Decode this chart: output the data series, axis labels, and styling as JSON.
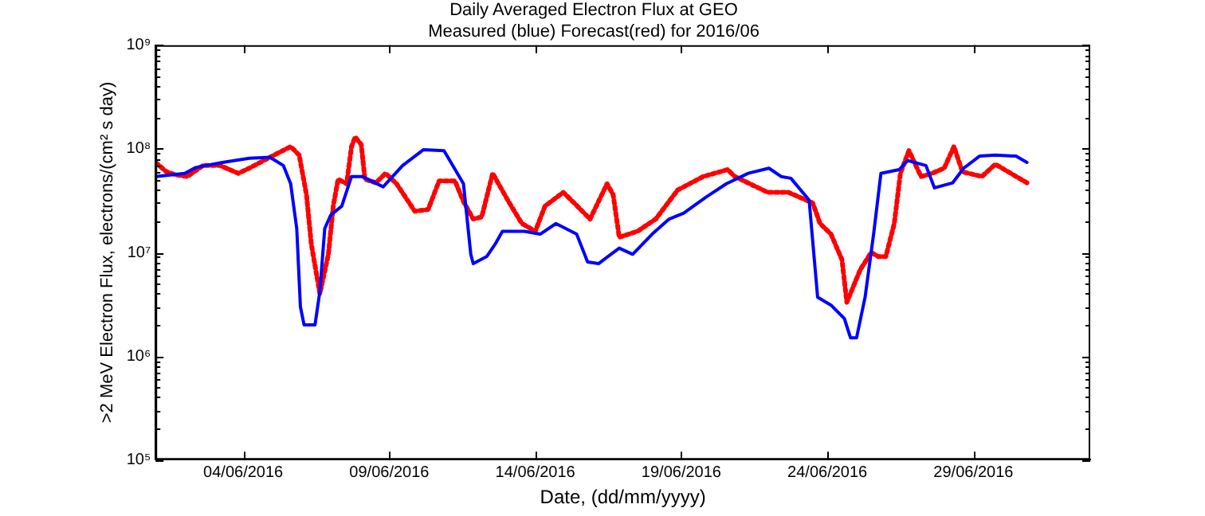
{
  "chart_data": {
    "type": "line",
    "title": "Daily Averaged Electron Flux at GEO",
    "subtitle": "Measured (blue) Forecast(red) for 2016/06",
    "xlabel": "Date, (dd/mm/yyyy)",
    "ylabel": ">2 MeV Electron Flux, electrons/(cm² s day)",
    "log": "y",
    "grid": false,
    "legend": false,
    "xlim": [
      "2016-06-01",
      "2016-07-03"
    ],
    "xticks": [
      {
        "value": "2016-06-04",
        "label": "04/06/2016"
      },
      {
        "value": "2016-06-09",
        "label": "09/06/2016"
      },
      {
        "value": "2016-06-14",
        "label": "14/06/2016"
      },
      {
        "value": "2016-06-19",
        "label": "19/06/2016"
      },
      {
        "value": "2016-06-24",
        "label": "24/06/2016"
      },
      {
        "value": "2016-06-29",
        "label": "29/06/2016"
      }
    ],
    "ylim": [
      100000,
      1000000000
    ],
    "yticks": [
      {
        "value": 100000,
        "label": "10⁵"
      },
      {
        "value": 200000,
        "label": null
      },
      {
        "value": 300000,
        "label": null
      },
      {
        "value": 400000,
        "label": null
      },
      {
        "value": 500000,
        "label": null
      },
      {
        "value": 600000,
        "label": null
      },
      {
        "value": 700000,
        "label": null
      },
      {
        "value": 800000,
        "label": null
      },
      {
        "value": 900000,
        "label": null
      },
      {
        "value": 1000000,
        "label": "10⁶"
      },
      {
        "value": 2000000,
        "label": null
      },
      {
        "value": 3000000,
        "label": null
      },
      {
        "value": 4000000,
        "label": null
      },
      {
        "value": 5000000,
        "label": null
      },
      {
        "value": 6000000,
        "label": null
      },
      {
        "value": 7000000,
        "label": null
      },
      {
        "value": 8000000,
        "label": null
      },
      {
        "value": 9000000,
        "label": null
      },
      {
        "value": 10000000,
        "label": "10⁷"
      },
      {
        "value": 20000000,
        "label": null
      },
      {
        "value": 30000000,
        "label": null
      },
      {
        "value": 40000000,
        "label": null
      },
      {
        "value": 50000000,
        "label": null
      },
      {
        "value": 60000000,
        "label": null
      },
      {
        "value": 70000000,
        "label": null
      },
      {
        "value": 80000000,
        "label": null
      },
      {
        "value": 90000000,
        "label": null
      },
      {
        "value": 100000000,
        "label": "10⁸"
      },
      {
        "value": 200000000,
        "label": null
      },
      {
        "value": 300000000,
        "label": null
      },
      {
        "value": 400000000,
        "label": null
      },
      {
        "value": 500000000,
        "label": null
      },
      {
        "value": 600000000,
        "label": null
      },
      {
        "value": 700000000,
        "label": null
      },
      {
        "value": 800000000,
        "label": null
      },
      {
        "value": 900000000,
        "label": null
      },
      {
        "value": 1000000000,
        "label": "10⁹"
      }
    ],
    "series": [
      {
        "color": "#0000ff",
        "line_style": "solid",
        "x": [
          "2016-06-01T00:00",
          "2016-06-02T00:00",
          "2016-06-02T09:00",
          "2016-06-03T07:00",
          "2016-06-04T05:00",
          "2016-06-04T22:00",
          "2016-06-05T09:00",
          "2016-06-05T15:00",
          "2016-06-05T20:00",
          "2016-06-05T23:00",
          "2016-06-06T02:00",
          "2016-06-06T11:00",
          "2016-06-06T15:00",
          "2016-06-06T19:00",
          "2016-06-07T00:00",
          "2016-06-07T09:00",
          "2016-06-07T17:00",
          "2016-06-08T02:00",
          "2016-06-08T19:00",
          "2016-06-09T11:00",
          "2016-06-10T04:00",
          "2016-06-10T21:00",
          "2016-06-11T08:00",
          "2016-06-11T13:00",
          "2016-06-11T19:00",
          "2016-06-11T21:00",
          "2016-06-12T08:00",
          "2016-06-12T15:00",
          "2016-06-12T21:00",
          "2016-06-13T15:00",
          "2016-06-14T04:00",
          "2016-06-14T17:00",
          "2016-06-15T10:00",
          "2016-06-15T19:00",
          "2016-06-16T04:00",
          "2016-06-16T21:00",
          "2016-06-17T08:00",
          "2016-06-18T00:00",
          "2016-06-18T14:00",
          "2016-06-19T02:00",
          "2016-06-19T20:00",
          "2016-06-20T13:00",
          "2016-06-21T07:00",
          "2016-06-22T00:00",
          "2016-06-22T10:00",
          "2016-06-22T18:00",
          "2016-06-23T09:00",
          "2016-06-23T16:00",
          "2016-06-24T03:00",
          "2016-06-24T14:00",
          "2016-06-24T19:00",
          "2016-06-25T00:00",
          "2016-06-25T07:00",
          "2016-06-25T14:00",
          "2016-06-25T20:00",
          "2016-06-26T11:00",
          "2016-06-26T18:00",
          "2016-06-27T09:00",
          "2016-06-27T16:00",
          "2016-06-28T07:00",
          "2016-06-28T16:00",
          "2016-06-29T05:00",
          "2016-06-29T18:00",
          "2016-06-30T11:00",
          "2016-06-30T20:00"
        ],
        "values": [
          54000000,
          58000000,
          66000000,
          74000000,
          81000000,
          83000000,
          69000000,
          46000000,
          17000000,
          3000000,
          2000000,
          2000000,
          4200000,
          17000000,
          23000000,
          28000000,
          54000000,
          54000000,
          43000000,
          69000000,
          98000000,
          96000000,
          58000000,
          46000000,
          9600000,
          7800000,
          9100000,
          12000000,
          16000000,
          16000000,
          15000000,
          19000000,
          15000000,
          8100000,
          7800000,
          11000000,
          9600000,
          15000000,
          21000000,
          24000000,
          34000000,
          46000000,
          58000000,
          65000000,
          54000000,
          52000000,
          32000000,
          3700000,
          3100000,
          2300000,
          1500000,
          1500000,
          3700000,
          15000000,
          58000000,
          63000000,
          77000000,
          69000000,
          42000000,
          47000000,
          65000000,
          85000000,
          87000000,
          85000000,
          74000000
        ]
      },
      {
        "color": "#ff0000",
        "line_style": "dotted",
        "x": [
          "2016-06-01T00:00",
          "2016-06-01T09:00",
          "2016-06-01T17:00",
          "2016-06-02T02:00",
          "2016-06-02T15:00",
          "2016-06-03T05:00",
          "2016-06-03T20:00",
          "2016-06-04T05:00",
          "2016-06-04T22:00",
          "2016-06-05T15:00",
          "2016-06-05T22:00",
          "2016-06-06T04:00",
          "2016-06-06T08:00",
          "2016-06-06T15:00",
          "2016-06-06T22:00",
          "2016-06-07T02:00",
          "2016-06-07T06:00",
          "2016-06-07T13:00",
          "2016-06-07T17:00",
          "2016-06-07T20:00",
          "2016-06-08T01:00",
          "2016-06-08T04:00",
          "2016-06-08T13:00",
          "2016-06-08T21:00",
          "2016-06-09T06:00",
          "2016-06-09T21:00",
          "2016-06-10T08:00",
          "2016-06-10T17:00",
          "2016-06-11T06:00",
          "2016-06-11T13:00",
          "2016-06-11T21:00",
          "2016-06-12T04:00",
          "2016-06-12T13:00",
          "2016-06-13T02:00",
          "2016-06-13T13:00",
          "2016-06-14T00:00",
          "2016-06-14T08:00",
          "2016-06-14T23:00",
          "2016-06-15T08:00",
          "2016-06-15T21:00",
          "2016-06-16T11:00",
          "2016-06-16T16:00",
          "2016-06-16T21:00",
          "2016-06-17T12:00",
          "2016-06-18T03:00",
          "2016-06-18T21:00",
          "2016-06-19T18:00",
          "2016-06-20T14:00",
          "2016-06-20T20:00",
          "2016-06-21T23:00",
          "2016-06-22T16:00",
          "2016-06-23T12:00",
          "2016-06-23T18:00",
          "2016-06-24T03:00",
          "2016-06-24T12:00",
          "2016-06-24T16:00",
          "2016-06-25T03:00",
          "2016-06-25T12:00",
          "2016-06-25T18:00",
          "2016-06-26T00:00",
          "2016-06-26T07:00",
          "2016-06-26T12:00",
          "2016-06-26T19:00",
          "2016-06-27T05:00",
          "2016-06-27T14:00",
          "2016-06-28T00:00",
          "2016-06-28T08:00",
          "2016-06-28T15:00",
          "2016-06-29T07:00",
          "2016-06-29T18:00",
          "2016-06-30T20:00"
        ],
        "values": [
          74000000,
          60000000,
          56000000,
          54000000,
          69000000,
          69000000,
          58000000,
          65000000,
          83000000,
          105000000,
          87000000,
          36000000,
          12000000,
          4000000,
          9600000,
          28000000,
          51000000,
          46000000,
          105000000,
          130000000,
          110000000,
          51000000,
          47000000,
          58000000,
          46000000,
          25000000,
          26000000,
          49000000,
          49000000,
          31000000,
          21000000,
          22000000,
          58000000,
          31000000,
          19000000,
          16000000,
          28000000,
          38000000,
          30000000,
          21000000,
          46000000,
          36000000,
          14000000,
          16000000,
          21000000,
          40000000,
          54000000,
          63000000,
          54000000,
          38000000,
          38000000,
          30000000,
          19000000,
          15000000,
          8500000,
          3300000,
          6800000,
          10000000,
          9100000,
          9100000,
          19000000,
          58000000,
          96000000,
          54000000,
          58000000,
          65000000,
          105000000,
          60000000,
          54000000,
          71000000,
          47000000
        ]
      }
    ]
  }
}
